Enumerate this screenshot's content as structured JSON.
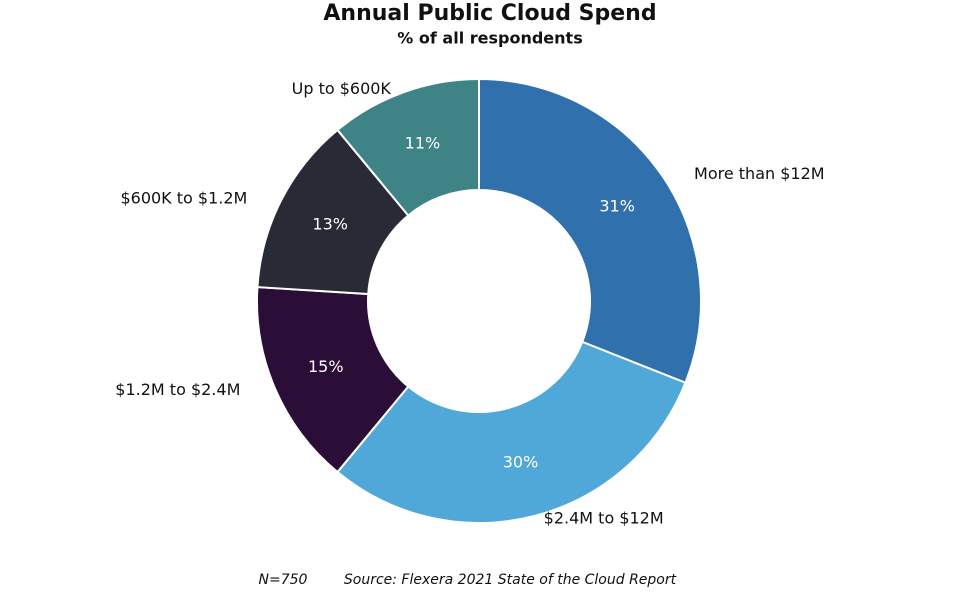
{
  "chart_data": {
    "type": "donut",
    "title": "Annual Public Cloud Spend",
    "subtitle": "% of all respondents",
    "categories": [
      "More than $12M",
      "$2.4M to $12M",
      "$1.2M to $2.4M",
      "$600K to $1.2M",
      "Up to $600K"
    ],
    "values": [
      31,
      30,
      15,
      13,
      11
    ],
    "value_labels": [
      "31%",
      "30%",
      "15%",
      "13%",
      "11%"
    ],
    "colors": [
      "#3070ad",
      "#50a8d8",
      "#2a0e37",
      "#282b35",
      "#3e8487"
    ],
    "notes": [
      "N=750",
      "Source: Flexera 2021 State of the Cloud Report"
    ]
  }
}
